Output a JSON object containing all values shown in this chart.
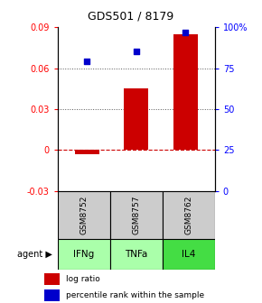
{
  "title": "GDS501 / 8179",
  "samples": [
    "GSM8752",
    "GSM8757",
    "GSM8762"
  ],
  "agents": [
    "IFNg",
    "TNFa",
    "IL4"
  ],
  "log_ratios": [
    -0.003,
    0.045,
    0.085
  ],
  "percentile_ranks": [
    79,
    85,
    97
  ],
  "left_ylim": [
    -0.03,
    0.09
  ],
  "right_ylim": [
    0,
    100
  ],
  "left_yticks": [
    -0.03,
    0,
    0.03,
    0.06,
    0.09
  ],
  "right_yticks": [
    0,
    25,
    50,
    75,
    100
  ],
  "right_yticklabels": [
    "0",
    "25",
    "50",
    "75",
    "100%"
  ],
  "bar_color": "#cc0000",
  "dot_color": "#0000cc",
  "dashed_line_color": "#cc0000",
  "dotted_line_color": "#555555",
  "agent_colors": [
    "#aaffaa",
    "#aaffaa",
    "#44dd44"
  ],
  "sample_bg_color": "#cccccc",
  "bar_width": 0.5,
  "legend_bar_color": "#cc0000",
  "legend_dot_color": "#0000cc",
  "title_fontsize": 9
}
